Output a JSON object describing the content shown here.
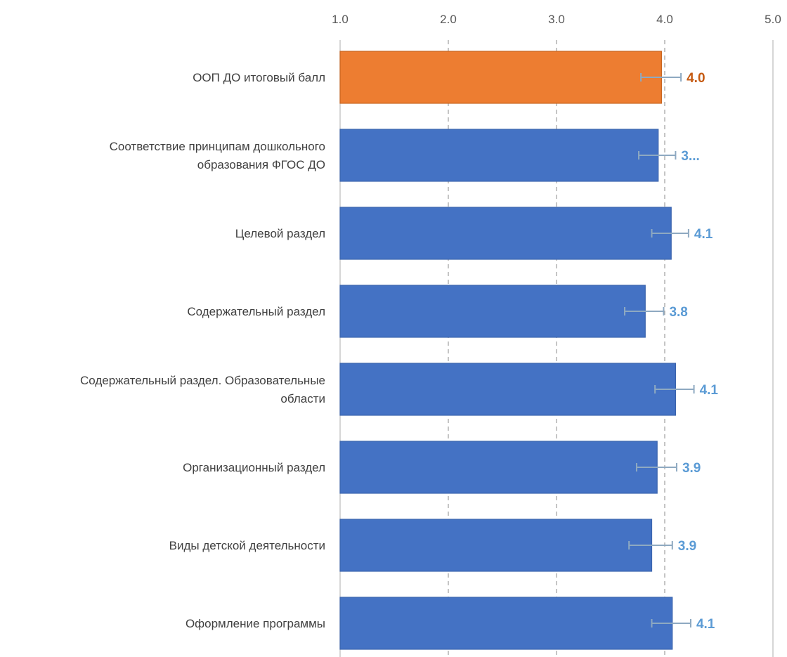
{
  "chart_data": {
    "type": "bar",
    "orientation": "horizontal",
    "title": "",
    "xlabel": "",
    "ylabel": "",
    "xlim": [
      1.0,
      5.0
    ],
    "ticks": [
      "1.0",
      "2.0",
      "3.0",
      "4.0",
      "5.0"
    ],
    "tick_values": [
      1,
      2,
      3,
      4,
      5
    ],
    "axis_position": "top",
    "grid": true,
    "legend": "none",
    "categories": [
      "ООП ДО итоговый балл",
      "Соответствие принципам дошкольного образования ФГОС ДО",
      "Целевой раздел",
      "Содержательный раздел",
      "Содержательный раздел. Образовательные области",
      "Организационный раздел",
      "Виды детской деятельности",
      "Оформление программы"
    ],
    "category_lines": [
      [
        "ООП ДО итоговый балл"
      ],
      [
        "Соответствие принципам дошкольного",
        "образования ФГОС ДО"
      ],
      [
        "Целевой раздел"
      ],
      [
        "Содержательный раздел"
      ],
      [
        "Содержательный раздел. Образовательные",
        "области"
      ],
      [
        "Организационный раздел"
      ],
      [
        "Виды детской деятельности"
      ],
      [
        "Оформление программы"
      ]
    ],
    "values": [
      3.97,
      3.94,
      4.06,
      3.82,
      4.1,
      3.93,
      3.88,
      4.07
    ],
    "error_low": [
      3.78,
      3.76,
      3.88,
      3.63,
      3.91,
      3.74,
      3.67,
      3.88
    ],
    "error_high": [
      4.15,
      4.1,
      4.22,
      3.99,
      4.27,
      4.11,
      4.07,
      4.24
    ],
    "data_labels": [
      "4.0",
      "3...",
      "4.1",
      "3.8",
      "4.1",
      "3.9",
      "3.9",
      "4.1"
    ],
    "highlight_index": 0,
    "colors": {
      "highlight_bar": "#ED7D31",
      "bar": "#4472C4",
      "highlight_label": "#C55A11",
      "label": "#5B9BD5",
      "error_bar": "#8EA9C1",
      "grid": "#A6A6A6",
      "axis": "#BFBFBF"
    }
  }
}
